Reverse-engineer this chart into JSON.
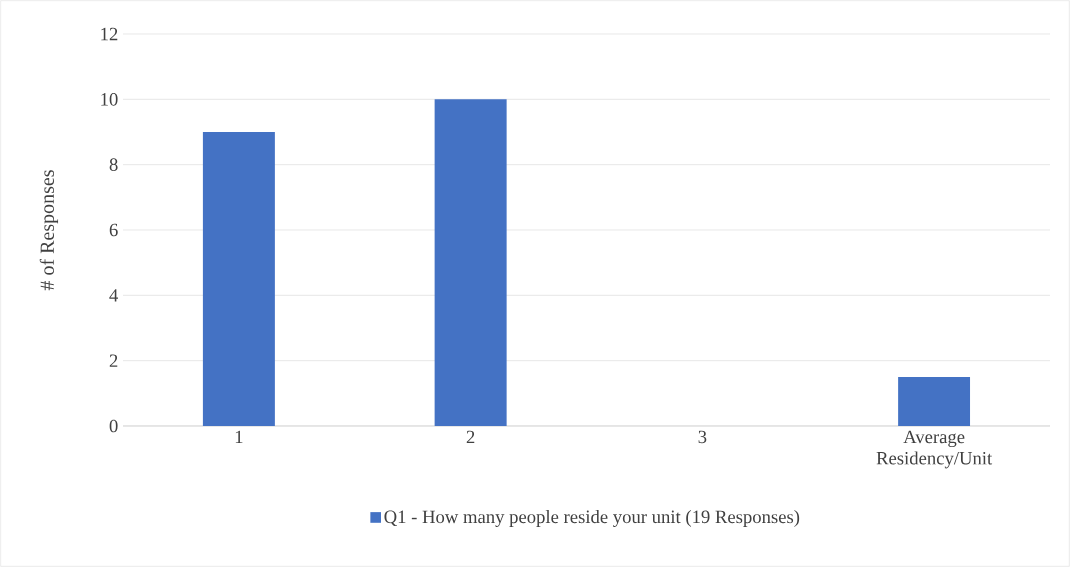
{
  "chart_data": {
    "type": "bar",
    "ylabel": "# of Responses",
    "categories": [
      "1",
      "2",
      "3",
      "Average Residency/Unit"
    ],
    "series": [
      {
        "name": "Q1 - How many people reside your unit (19 Responses)",
        "color": "#4472c4",
        "values": [
          9,
          10,
          0,
          1.5
        ]
      }
    ],
    "ylim": [
      0,
      12
    ],
    "yticks": [
      0,
      2,
      4,
      6,
      8,
      10,
      12
    ],
    "grid": "y",
    "legend": "bottom"
  }
}
